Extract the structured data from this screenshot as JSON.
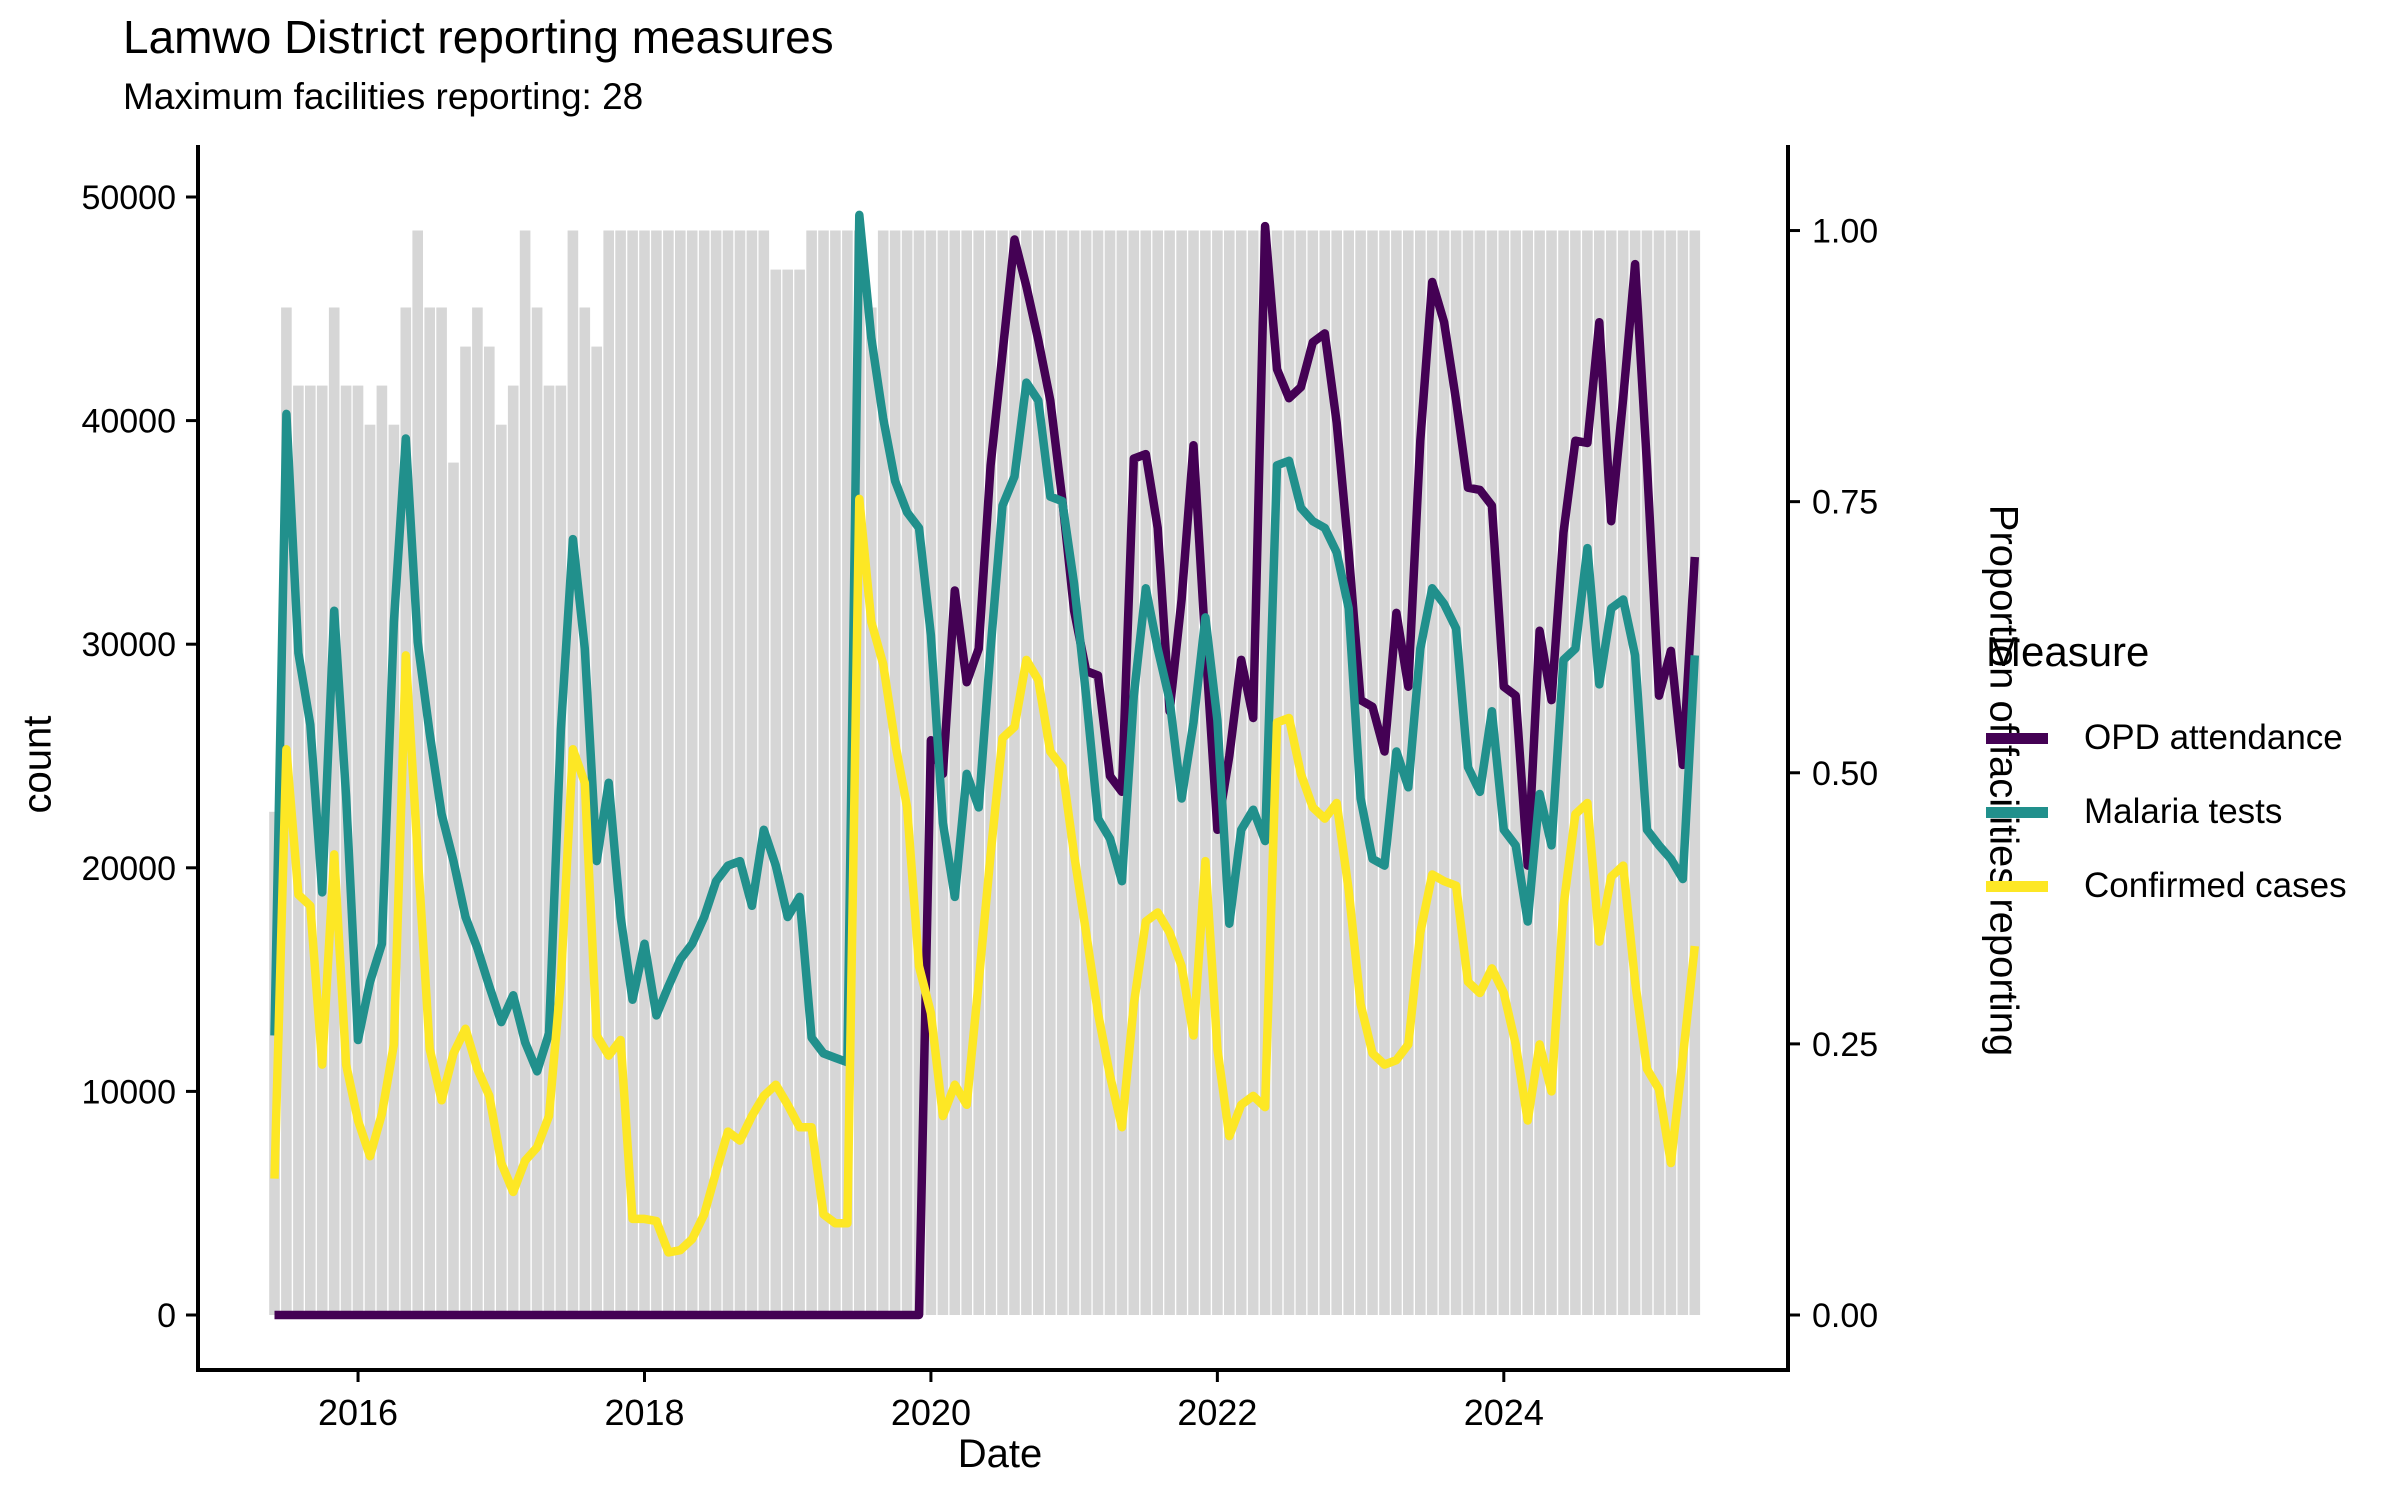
{
  "header": {
    "title": "Lamwo District reporting measures",
    "subtitle": "Maximum facilities reporting: 28"
  },
  "legend": {
    "title": "Measure",
    "position": "right",
    "items": [
      {
        "label": "OPD attendance",
        "color": "#440154"
      },
      {
        "label": "Malaria tests",
        "color": "#21908C"
      },
      {
        "label": "Confirmed cases",
        "color": "#FDE725"
      }
    ]
  },
  "colors": {
    "opd": "#440154",
    "malaria_tests": "#21908C",
    "confirmed_cases": "#FDE725",
    "bars": "#D6D6D6",
    "axis": "#000000",
    "background": "#ffffff"
  },
  "chart_data": {
    "type": "line",
    "subtype": "monthly time series lines over background bar chart, dual y-axis",
    "title": "Lamwo District reporting measures",
    "subtitle": "Maximum facilities reporting: 28",
    "xlabel": "Date",
    "ylabel_left": "count",
    "ylabel_right": "Proportion of facilities reporting",
    "grid": false,
    "x_frequency": "monthly",
    "x_start": "2015-06",
    "x_end": "2025-05",
    "x_tick_years": [
      2016,
      2018,
      2020,
      2022,
      2024
    ],
    "ylim_left": [
      0,
      50000
    ],
    "left_ticks": [
      0,
      10000,
      20000,
      30000,
      40000,
      50000
    ],
    "left_tick_labels": [
      "0",
      "10000",
      "20000",
      "30000",
      "40000",
      "50000"
    ],
    "ylim_right": [
      0,
      1
    ],
    "right_ticks": [
      0,
      0.25,
      0.5,
      0.75,
      1.0
    ],
    "right_tick_labels": [
      "0.00",
      "0.25",
      "0.50",
      "0.75",
      "1.00"
    ],
    "right_axis_count_at_1": 48500,
    "max_facilities": 28,
    "dates": [
      "2015-06",
      "2015-07",
      "2015-08",
      "2015-09",
      "2015-10",
      "2015-11",
      "2015-12",
      "2016-01",
      "2016-02",
      "2016-03",
      "2016-04",
      "2016-05",
      "2016-06",
      "2016-07",
      "2016-08",
      "2016-09",
      "2016-10",
      "2016-11",
      "2016-12",
      "2017-01",
      "2017-02",
      "2017-03",
      "2017-04",
      "2017-05",
      "2017-06",
      "2017-07",
      "2017-08",
      "2017-09",
      "2017-10",
      "2017-11",
      "2017-12",
      "2018-01",
      "2018-02",
      "2018-03",
      "2018-04",
      "2018-05",
      "2018-06",
      "2018-07",
      "2018-08",
      "2018-09",
      "2018-10",
      "2018-11",
      "2018-12",
      "2019-01",
      "2019-02",
      "2019-03",
      "2019-04",
      "2019-05",
      "2019-06",
      "2019-07",
      "2019-08",
      "2019-09",
      "2019-10",
      "2019-11",
      "2019-12",
      "2020-01",
      "2020-02",
      "2020-03",
      "2020-04",
      "2020-05",
      "2020-06",
      "2020-07",
      "2020-08",
      "2020-09",
      "2020-10",
      "2020-11",
      "2020-12",
      "2021-01",
      "2021-02",
      "2021-03",
      "2021-04",
      "2021-05",
      "2021-06",
      "2021-07",
      "2021-08",
      "2021-09",
      "2021-10",
      "2021-11",
      "2021-12",
      "2022-01",
      "2022-02",
      "2022-03",
      "2022-04",
      "2022-05",
      "2022-06",
      "2022-07",
      "2022-08",
      "2022-09",
      "2022-10",
      "2022-11",
      "2022-12",
      "2023-01",
      "2023-02",
      "2023-03",
      "2023-04",
      "2023-05",
      "2023-06",
      "2023-07",
      "2023-08",
      "2023-09",
      "2023-10",
      "2023-11",
      "2023-12",
      "2024-01",
      "2024-02",
      "2024-03",
      "2024-04",
      "2024-05",
      "2024-06",
      "2024-07",
      "2024-08",
      "2024-09",
      "2024-10",
      "2024-11",
      "2024-12",
      "2025-01",
      "2025-02",
      "2025-03",
      "2025-04",
      "2025-05"
    ],
    "series": [
      {
        "name": "OPD attendance",
        "axis": "left",
        "color": "#440154",
        "values": [
          0,
          0,
          0,
          0,
          0,
          0,
          0,
          0,
          0,
          0,
          0,
          0,
          0,
          0,
          0,
          0,
          0,
          0,
          0,
          0,
          0,
          0,
          0,
          0,
          0,
          0,
          0,
          0,
          0,
          0,
          0,
          0,
          0,
          0,
          0,
          0,
          0,
          0,
          0,
          0,
          0,
          0,
          0,
          0,
          0,
          0,
          0,
          0,
          0,
          0,
          0,
          0,
          0,
          0,
          0,
          25700,
          24200,
          32400,
          28300,
          29800,
          38000,
          43000,
          48100,
          46000,
          43600,
          40900,
          36500,
          31500,
          28800,
          28600,
          24100,
          23400,
          38300,
          38500,
          35200,
          27000,
          32000,
          38900,
          30000,
          21700,
          25000,
          29300,
          26700,
          48700,
          42300,
          41000,
          41500,
          43500,
          43900,
          39900,
          34100,
          27500,
          27200,
          25200,
          31400,
          28100,
          39100,
          46200,
          44400,
          40900,
          37000,
          36900,
          36200,
          28100,
          27700,
          20100,
          30600,
          27500,
          35000,
          39100,
          39000,
          44400,
          35500,
          41000,
          47000,
          38000,
          27700,
          29700,
          24600,
          33900
        ]
      },
      {
        "name": "Malaria tests",
        "axis": "left",
        "color": "#21908C",
        "values": [
          12500,
          40300,
          29600,
          26400,
          18900,
          31500,
          23200,
          12300,
          14900,
          16600,
          31000,
          39200,
          30100,
          26000,
          22400,
          20300,
          17800,
          16400,
          14700,
          13100,
          14300,
          12200,
          10900,
          12600,
          26200,
          34700,
          29800,
          20300,
          23800,
          17800,
          14100,
          16600,
          13400,
          14700,
          15900,
          16600,
          17800,
          19400,
          20100,
          20300,
          18300,
          21700,
          20100,
          17800,
          18700,
          12400,
          11700,
          11500,
          11300,
          49200,
          43700,
          40100,
          37300,
          35900,
          35200,
          30400,
          22000,
          18700,
          24200,
          22700,
          29800,
          36200,
          37500,
          41700,
          40900,
          36600,
          36400,
          32700,
          27700,
          22200,
          21300,
          19400,
          27700,
          32500,
          29800,
          27500,
          23100,
          26500,
          31200,
          26600,
          17500,
          21700,
          22600,
          21200,
          38000,
          38200,
          36100,
          35500,
          35200,
          34100,
          31600,
          23100,
          20400,
          20100,
          25200,
          23600,
          29800,
          32500,
          31800,
          30700,
          24500,
          23400,
          27000,
          21700,
          21000,
          17600,
          23300,
          21000,
          29300,
          29800,
          34300,
          28200,
          31600,
          32000,
          29500,
          21700,
          21000,
          20400,
          19500,
          29500
        ]
      },
      {
        "name": "Confirmed cases",
        "axis": "left",
        "color": "#FDE725",
        "values": [
          6100,
          25300,
          18800,
          18300,
          11200,
          20600,
          11200,
          8700,
          7100,
          9000,
          12100,
          29500,
          20600,
          11900,
          9600,
          11700,
          12800,
          11000,
          9800,
          6800,
          5500,
          6900,
          7500,
          8900,
          15000,
          25300,
          23800,
          12500,
          11600,
          12300,
          4300,
          4300,
          4200,
          2800,
          2900,
          3400,
          4500,
          6400,
          8200,
          7800,
          8900,
          9800,
          10300,
          9400,
          8400,
          8400,
          4500,
          4100,
          4100,
          36500,
          31000,
          29100,
          25600,
          22700,
          15600,
          13500,
          8900,
          10300,
          9400,
          14900,
          20600,
          25800,
          26300,
          29300,
          28400,
          25200,
          24500,
          20600,
          17100,
          13500,
          10700,
          8400,
          13900,
          17600,
          18000,
          17100,
          15600,
          12500,
          20300,
          11900,
          8000,
          9400,
          9800,
          9300,
          26500,
          26700,
          24200,
          22700,
          22200,
          22900,
          19000,
          13900,
          11700,
          11200,
          11400,
          12100,
          17100,
          19700,
          19400,
          19200,
          14900,
          14400,
          15500,
          14400,
          12100,
          8700,
          12100,
          10000,
          18300,
          22400,
          22900,
          16700,
          19600,
          20100,
          14900,
          11000,
          10100,
          6800,
          11500,
          16500
        ]
      }
    ],
    "bars": {
      "name": "Proportion of facilities reporting",
      "axis": "right",
      "color": "#D6D6D6",
      "values": [
        0.464,
        0.929,
        0.857,
        0.857,
        0.857,
        0.929,
        0.857,
        0.857,
        0.821,
        0.857,
        0.821,
        0.929,
        1,
        0.929,
        0.929,
        0.786,
        0.893,
        0.929,
        0.893,
        0.821,
        0.857,
        1,
        0.929,
        0.857,
        0.857,
        1,
        0.929,
        0.893,
        1,
        1,
        1,
        1,
        1,
        1,
        1,
        1,
        1,
        1,
        1,
        1,
        1,
        1,
        0.964,
        0.964,
        0.964,
        1,
        1,
        1,
        1,
        1,
        0.929,
        1,
        1,
        1,
        1,
        1,
        1,
        1,
        1,
        1,
        1,
        1,
        1,
        1,
        1,
        1,
        1,
        1,
        1,
        1,
        1,
        1,
        1,
        1,
        1,
        1,
        1,
        1,
        1,
        1,
        1,
        1,
        1,
        1,
        1,
        1,
        1,
        1,
        1,
        1,
        1,
        1,
        1,
        1,
        1,
        1,
        1,
        1,
        1,
        1,
        1,
        1,
        1,
        1,
        1,
        1,
        1,
        1,
        1,
        1,
        1,
        1,
        1,
        1,
        1,
        1,
        1,
        1,
        1,
        1
      ]
    }
  }
}
